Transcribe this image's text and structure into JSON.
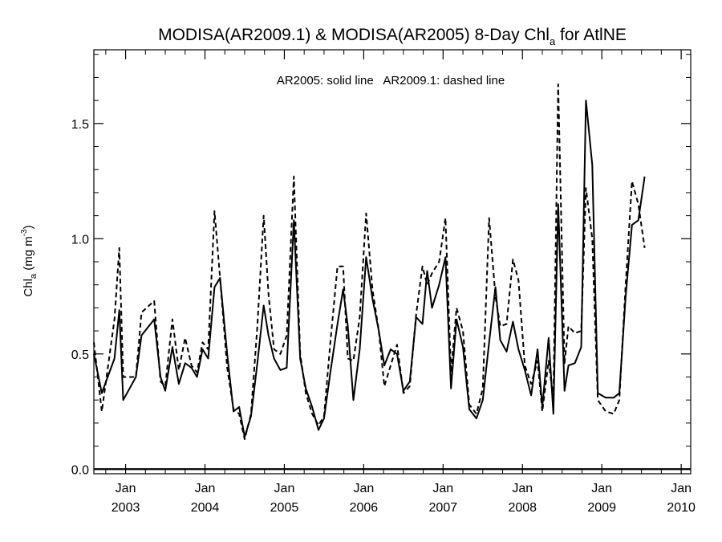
{
  "chart_data": {
    "type": "line",
    "title": {
      "main": "MODISA(AR2009.1) & MODISA(AR2005) 8-Day Chl",
      "sub": "a",
      "tail": " for AtlNE"
    },
    "ylabel": {
      "main": "Chl",
      "sub": "a",
      "unit_pre": " (mg m",
      "unit_sup": "-3",
      "unit_post": ")"
    },
    "annotation": "AR2005: solid line   AR2009.1: dashed line",
    "xlim": [
      2002.6,
      2010.12
    ],
    "ylim": [
      -0.02,
      1.82
    ],
    "yticks": [
      {
        "value": 0.0,
        "label": "0.0"
      },
      {
        "value": 0.5,
        "label": "0.5"
      },
      {
        "value": 1.0,
        "label": "1.0"
      },
      {
        "value": 1.5,
        "label": "1.5"
      }
    ],
    "xticks": [
      {
        "value": 2003.0,
        "month": "Jan",
        "year": "2003"
      },
      {
        "value": 2004.0,
        "month": "Jan",
        "year": "2004"
      },
      {
        "value": 2005.0,
        "month": "Jan",
        "year": "2005"
      },
      {
        "value": 2006.0,
        "month": "Jan",
        "year": "2006"
      },
      {
        "value": 2007.0,
        "month": "Jan",
        "year": "2007"
      },
      {
        "value": 2008.0,
        "month": "Jan",
        "year": "2008"
      },
      {
        "value": 2009.0,
        "month": "Jan",
        "year": "2009"
      },
      {
        "value": 2010.0,
        "month": "Jan",
        "year": "2010"
      }
    ],
    "grid": false,
    "series": [
      {
        "name": "AR2005",
        "style": "solid",
        "color": "#000000",
        "points": [
          [
            2002.6,
            0.5
          ],
          [
            2002.7,
            0.33
          ],
          [
            2002.86,
            0.48
          ],
          [
            2002.92,
            0.69
          ],
          [
            2002.97,
            0.3
          ],
          [
            2003.13,
            0.4
          ],
          [
            2003.2,
            0.58
          ],
          [
            2003.36,
            0.65
          ],
          [
            2003.44,
            0.4
          ],
          [
            2003.5,
            0.34
          ],
          [
            2003.59,
            0.53
          ],
          [
            2003.67,
            0.37
          ],
          [
            2003.75,
            0.46
          ],
          [
            2003.83,
            0.44
          ],
          [
            2003.9,
            0.4
          ],
          [
            2003.97,
            0.52
          ],
          [
            2004.04,
            0.48
          ],
          [
            2004.12,
            0.79
          ],
          [
            2004.19,
            0.83
          ],
          [
            2004.28,
            0.5
          ],
          [
            2004.36,
            0.25
          ],
          [
            2004.43,
            0.27
          ],
          [
            2004.5,
            0.14
          ],
          [
            2004.58,
            0.23
          ],
          [
            2004.66,
            0.46
          ],
          [
            2004.74,
            0.71
          ],
          [
            2004.8,
            0.58
          ],
          [
            2004.87,
            0.48
          ],
          [
            2004.95,
            0.43
          ],
          [
            2005.03,
            0.44
          ],
          [
            2005.12,
            1.08
          ],
          [
            2005.2,
            0.48
          ],
          [
            2005.27,
            0.35
          ],
          [
            2005.35,
            0.27
          ],
          [
            2005.43,
            0.17
          ],
          [
            2005.5,
            0.22
          ],
          [
            2005.58,
            0.42
          ],
          [
            2005.67,
            0.63
          ],
          [
            2005.74,
            0.78
          ],
          [
            2005.8,
            0.62
          ],
          [
            2005.87,
            0.3
          ],
          [
            2005.95,
            0.52
          ],
          [
            2006.03,
            0.92
          ],
          [
            2006.11,
            0.74
          ],
          [
            2006.19,
            0.6
          ],
          [
            2006.26,
            0.45
          ],
          [
            2006.34,
            0.52
          ],
          [
            2006.42,
            0.5
          ],
          [
            2006.5,
            0.34
          ],
          [
            2006.58,
            0.38
          ],
          [
            2006.66,
            0.66
          ],
          [
            2006.74,
            0.63
          ],
          [
            2006.8,
            0.86
          ],
          [
            2006.86,
            0.7
          ],
          [
            2006.95,
            0.8
          ],
          [
            2007.03,
            0.92
          ],
          [
            2007.1,
            0.35
          ],
          [
            2007.17,
            0.65
          ],
          [
            2007.25,
            0.53
          ],
          [
            2007.33,
            0.26
          ],
          [
            2007.42,
            0.22
          ],
          [
            2007.5,
            0.3
          ],
          [
            2007.58,
            0.55
          ],
          [
            2007.66,
            0.79
          ],
          [
            2007.72,
            0.56
          ],
          [
            2007.8,
            0.51
          ],
          [
            2007.88,
            0.64
          ],
          [
            2007.95,
            0.52
          ],
          [
            2008.03,
            0.43
          ],
          [
            2008.11,
            0.32
          ],
          [
            2008.19,
            0.52
          ],
          [
            2008.25,
            0.27
          ],
          [
            2008.33,
            0.57
          ],
          [
            2008.39,
            0.24
          ],
          [
            2008.45,
            1.15
          ],
          [
            2008.53,
            0.34
          ],
          [
            2008.58,
            0.45
          ],
          [
            2008.66,
            0.46
          ],
          [
            2008.74,
            0.53
          ],
          [
            2008.8,
            1.6
          ],
          [
            2008.88,
            1.32
          ],
          [
            2008.95,
            0.33
          ],
          [
            2009.05,
            0.31
          ],
          [
            2009.15,
            0.31
          ],
          [
            2009.22,
            0.33
          ],
          [
            2009.3,
            0.75
          ],
          [
            2009.38,
            1.06
          ],
          [
            2009.46,
            1.08
          ],
          [
            2009.54,
            1.27
          ]
        ]
      },
      {
        "name": "AR2009.1",
        "style": "dashed",
        "color": "#000000",
        "points": [
          [
            2002.6,
            0.55
          ],
          [
            2002.7,
            0.25
          ],
          [
            2002.86,
            0.65
          ],
          [
            2002.92,
            0.96
          ],
          [
            2002.97,
            0.4
          ],
          [
            2003.13,
            0.4
          ],
          [
            2003.2,
            0.68
          ],
          [
            2003.36,
            0.73
          ],
          [
            2003.44,
            0.38
          ],
          [
            2003.5,
            0.36
          ],
          [
            2003.59,
            0.65
          ],
          [
            2003.67,
            0.43
          ],
          [
            2003.75,
            0.57
          ],
          [
            2003.83,
            0.45
          ],
          [
            2003.9,
            0.42
          ],
          [
            2003.97,
            0.55
          ],
          [
            2004.04,
            0.52
          ],
          [
            2004.12,
            1.12
          ],
          [
            2004.19,
            0.83
          ],
          [
            2004.28,
            0.44
          ],
          [
            2004.36,
            0.26
          ],
          [
            2004.43,
            0.24
          ],
          [
            2004.5,
            0.13
          ],
          [
            2004.58,
            0.24
          ],
          [
            2004.66,
            0.62
          ],
          [
            2004.74,
            1.1
          ],
          [
            2004.8,
            0.76
          ],
          [
            2004.87,
            0.52
          ],
          [
            2004.95,
            0.5
          ],
          [
            2005.03,
            0.58
          ],
          [
            2005.12,
            1.27
          ],
          [
            2005.2,
            0.5
          ],
          [
            2005.27,
            0.33
          ],
          [
            2005.35,
            0.24
          ],
          [
            2005.43,
            0.19
          ],
          [
            2005.5,
            0.23
          ],
          [
            2005.58,
            0.55
          ],
          [
            2005.67,
            0.88
          ],
          [
            2005.74,
            0.88
          ],
          [
            2005.8,
            0.48
          ],
          [
            2005.87,
            0.47
          ],
          [
            2005.95,
            0.66
          ],
          [
            2006.03,
            1.11
          ],
          [
            2006.11,
            0.78
          ],
          [
            2006.19,
            0.6
          ],
          [
            2006.26,
            0.36
          ],
          [
            2006.34,
            0.45
          ],
          [
            2006.42,
            0.54
          ],
          [
            2006.5,
            0.33
          ],
          [
            2006.58,
            0.36
          ],
          [
            2006.66,
            0.67
          ],
          [
            2006.74,
            0.88
          ],
          [
            2006.8,
            0.8
          ],
          [
            2006.86,
            0.85
          ],
          [
            2006.95,
            0.9
          ],
          [
            2007.03,
            1.09
          ],
          [
            2007.1,
            0.42
          ],
          [
            2007.17,
            0.7
          ],
          [
            2007.25,
            0.6
          ],
          [
            2007.33,
            0.28
          ],
          [
            2007.42,
            0.24
          ],
          [
            2007.5,
            0.35
          ],
          [
            2007.58,
            1.09
          ],
          [
            2007.66,
            0.75
          ],
          [
            2007.72,
            0.62
          ],
          [
            2007.8,
            0.63
          ],
          [
            2007.88,
            0.91
          ],
          [
            2007.95,
            0.82
          ],
          [
            2008.03,
            0.45
          ],
          [
            2008.11,
            0.37
          ],
          [
            2008.19,
            0.47
          ],
          [
            2008.25,
            0.25
          ],
          [
            2008.33,
            0.47
          ],
          [
            2008.39,
            0.3
          ],
          [
            2008.45,
            1.67
          ],
          [
            2008.53,
            0.46
          ],
          [
            2008.58,
            0.62
          ],
          [
            2008.66,
            0.59
          ],
          [
            2008.74,
            0.6
          ],
          [
            2008.8,
            1.22
          ],
          [
            2008.88,
            1.0
          ],
          [
            2008.95,
            0.3
          ],
          [
            2009.05,
            0.25
          ],
          [
            2009.15,
            0.24
          ],
          [
            2009.22,
            0.3
          ],
          [
            2009.3,
            0.8
          ],
          [
            2009.38,
            1.25
          ],
          [
            2009.46,
            1.15
          ],
          [
            2009.54,
            0.96
          ]
        ]
      }
    ]
  }
}
